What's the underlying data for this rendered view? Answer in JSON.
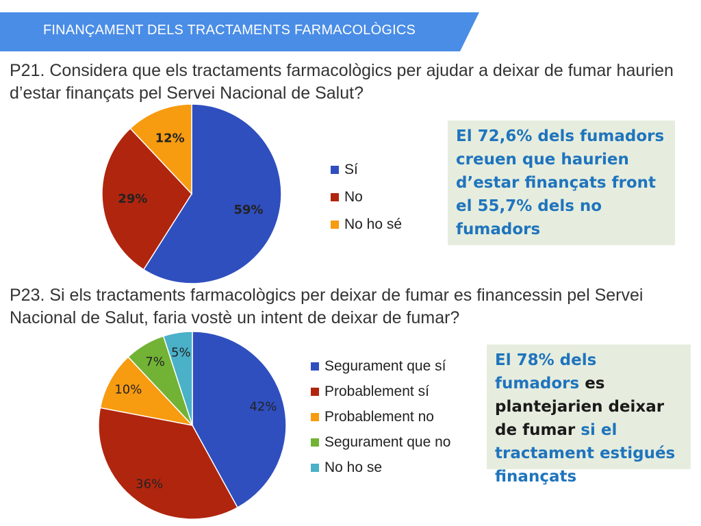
{
  "header": {
    "title": "FINANÇAMENT DELS TRACTAMENTS FARMACOLÒGICS"
  },
  "colors": {
    "banner": "#4a8de6",
    "callout_bg": "#e6edde",
    "callout_text": "#1f74bd"
  },
  "q21": {
    "question": "P21. Considera que els tractaments farmacològics per ajudar a deixar de fumar haurien d’estar finançats pel Servei Nacional de Salut?",
    "callout": "El 72,6% dels fumadors creuen que haurien d’estar finançats front el 55,7% dels no fumadors"
  },
  "q23": {
    "question": "P23. Si els tractaments farmacològics per deixar de fumar es financessin pel Servei Nacional de Salut, faria vostè un intent de deixar de fumar?",
    "callout_part1": "El 78% dels fumadors",
    "callout_part2": "es plantejarien deixar de fumar",
    "callout_part3": "si el tractament estigués finançats"
  },
  "chart_data": [
    {
      "type": "pie",
      "categories": [
        "Sí",
        "No",
        "No ho sé"
      ],
      "values": [
        59,
        29,
        12
      ],
      "labels": [
        "59%",
        "29%",
        "12%"
      ],
      "colors": [
        "#2f4fbf",
        "#b0250e",
        "#f79b10"
      ],
      "label_style": "bold",
      "legend_position": "right"
    },
    {
      "type": "pie",
      "categories": [
        "Segurament que sí",
        "Probablement sí",
        "Probablement no",
        "Segurament que no",
        "No ho se"
      ],
      "values": [
        42,
        36,
        10,
        7,
        5
      ],
      "labels": [
        "42%",
        "36%",
        "10%",
        "7%",
        "5%"
      ],
      "colors": [
        "#2f4fbf",
        "#b0250e",
        "#f79b10",
        "#72b336",
        "#4ab1c9"
      ],
      "label_style": "normal",
      "legend_position": "right"
    }
  ]
}
